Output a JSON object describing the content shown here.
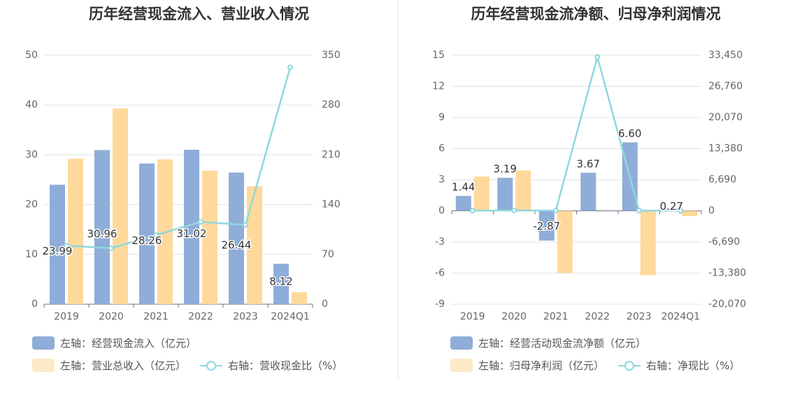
{
  "colors": {
    "bar_blue": "#8fadd9",
    "bar_yellow": "#ffd99b",
    "legend_yellow": "#fde9c5",
    "line": "#8ed8dc",
    "grid": "#dfe3ea",
    "axis_text": "#666666"
  },
  "chart_data": [
    {
      "type": "bar",
      "title": "历年经营现金流入、营业收入情况",
      "categories": [
        "2019",
        "2020",
        "2021",
        "2022",
        "2023",
        "2024Q1"
      ],
      "left_axis": {
        "ylim": [
          0,
          50
        ],
        "ticks": [
          "0",
          "10",
          "20",
          "30",
          "40",
          "50"
        ]
      },
      "right_axis": {
        "ylim": [
          0,
          350
        ],
        "ticks": [
          "0",
          "70",
          "140",
          "210",
          "280",
          "350"
        ]
      },
      "series": [
        {
          "name": "左轴：经营现金流入（亿元）",
          "axis": "left",
          "kind": "bar",
          "values": [
            23.99,
            30.96,
            28.26,
            31.02,
            26.44,
            8.12
          ],
          "labels": [
            "23.99",
            "30.96",
            "28.26",
            "31.02",
            "26.44",
            "8.12"
          ]
        },
        {
          "name": "左轴：营业总收入（亿元）",
          "axis": "left",
          "kind": "bar",
          "values": [
            29.2,
            39.3,
            29.1,
            26.8,
            23.7,
            2.4
          ]
        },
        {
          "name": "右轴：营收现金比（%）",
          "axis": "right",
          "kind": "line",
          "values": [
            82.2,
            78.8,
            97.1,
            115.8,
            111.5,
            333.0
          ]
        }
      ],
      "legend": [
        "左轴：经营现金流入（亿元）",
        "左轴：营业总收入（亿元）",
        "右轴：营收现金比（%）"
      ]
    },
    {
      "type": "bar",
      "title": "历年经营现金流净额、归母净利润情况",
      "categories": [
        "2019",
        "2020",
        "2021",
        "2022",
        "2023",
        "2024Q1"
      ],
      "left_axis": {
        "ylim": [
          -9,
          15
        ],
        "ticks": [
          "-9",
          "-6",
          "-3",
          "0",
          "3",
          "6",
          "9",
          "12",
          "15"
        ]
      },
      "right_axis": {
        "ylim": [
          -20070,
          33450
        ],
        "ticks": [
          "-20,070",
          "-13,380",
          "-6,690",
          "0",
          "6,690",
          "13,380",
          "20,070",
          "26,760",
          "33,450"
        ]
      },
      "series": [
        {
          "name": "左轴：经营活动现金流净额（亿元）",
          "axis": "left",
          "kind": "bar",
          "values": [
            1.44,
            3.19,
            -2.87,
            3.67,
            6.6,
            0.27
          ],
          "labels": [
            "1.44",
            "3.19",
            "-2.87",
            "3.67",
            "6.60",
            "0.27"
          ]
        },
        {
          "name": "左轴：归母净利润（亿元）",
          "axis": "left",
          "kind": "bar",
          "values": [
            3.3,
            3.9,
            -6.0,
            0,
            -6.2,
            -0.5
          ]
        },
        {
          "name": "右轴：净现比（%）",
          "axis": "right",
          "kind": "line",
          "values": [
            40,
            80,
            50,
            33100,
            80,
            10
          ]
        }
      ],
      "legend": [
        "左轴：经营活动现金流净额（亿元）",
        "左轴：归母净利润（亿元）",
        "右轴：净现比（%）"
      ]
    }
  ]
}
